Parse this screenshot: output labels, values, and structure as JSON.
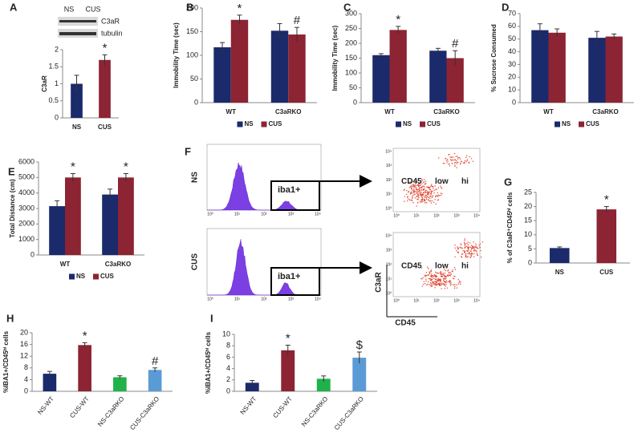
{
  "chart_data": [
    {
      "type": "bar",
      "panel": "A",
      "ylabel": "C3aR",
      "categories": [
        "NS",
        "CUS"
      ],
      "values": [
        1.0,
        1.7
      ],
      "errors": [
        0.25,
        0.15
      ],
      "annotations": [
        null,
        "*"
      ],
      "colors": [
        "#1b2a6b",
        "#8c2433"
      ],
      "ylim": [
        0,
        2
      ],
      "yticks": [
        0,
        0.5,
        1,
        1.5,
        2
      ],
      "blot_labels": [
        "NS",
        "CUS"
      ],
      "blot_rows": [
        "C3aR",
        "tubulin"
      ]
    },
    {
      "type": "grouped-bar",
      "panel": "B",
      "ylabel": "Immobility Time (sec)",
      "categories": [
        "WT",
        "C3aRKO"
      ],
      "series": [
        {
          "name": "NS",
          "color": "#1b2a6b",
          "values": [
            117,
            152
          ],
          "errors": [
            10,
            15
          ],
          "annotations": [
            null,
            null
          ]
        },
        {
          "name": "CUS",
          "color": "#8c2433",
          "values": [
            175,
            144
          ],
          "errors": [
            10,
            15
          ],
          "annotations": [
            "*",
            "#"
          ]
        }
      ],
      "ylim": [
        0,
        200
      ],
      "yticks": [
        0,
        50,
        100,
        150,
        200
      ],
      "legend": "bottom"
    },
    {
      "type": "grouped-bar",
      "panel": "C",
      "ylabel": "Immobility Time (sec)",
      "categories": [
        "WT",
        "C3aRKO"
      ],
      "series": [
        {
          "name": "NS",
          "color": "#1b2a6b",
          "values": [
            160,
            175
          ],
          "errors": [
            5,
            8
          ],
          "annotations": [
            null,
            null
          ]
        },
        {
          "name": "CUS",
          "color": "#8c2433",
          "values": [
            245,
            150
          ],
          "errors": [
            12,
            25
          ],
          "annotations": [
            "*",
            "#"
          ]
        }
      ],
      "ylim": [
        0,
        300
      ],
      "yticks": [
        0,
        50,
        100,
        150,
        200,
        250,
        300
      ],
      "legend": "bottom"
    },
    {
      "type": "grouped-bar",
      "panel": "D",
      "ylabel": "% Sucrose Consumed",
      "categories": [
        "WT",
        "C3aRKO"
      ],
      "series": [
        {
          "name": "NS",
          "color": "#1b2a6b",
          "values": [
            57,
            51
          ],
          "errors": [
            5,
            5
          ],
          "annotations": [
            null,
            null
          ]
        },
        {
          "name": "CUS",
          "color": "#8c2433",
          "values": [
            55,
            52
          ],
          "errors": [
            3,
            2
          ],
          "annotations": [
            null,
            null
          ]
        }
      ],
      "ylim": [
        0,
        70
      ],
      "yticks": [
        0,
        10,
        20,
        30,
        40,
        50,
        60,
        70
      ],
      "legend": "bottom"
    },
    {
      "type": "grouped-bar",
      "panel": "E",
      "ylabel": "Total Distance (cm)",
      "categories": [
        "WT",
        "C3aRKO"
      ],
      "series": [
        {
          "name": "NS",
          "color": "#1b2a6b",
          "values": [
            3150,
            3900
          ],
          "errors": [
            350,
            350
          ],
          "annotations": [
            null,
            null
          ]
        },
        {
          "name": "CUS",
          "color": "#8c2433",
          "values": [
            5000,
            5000
          ],
          "errors": [
            250,
            250
          ],
          "annotations": [
            "*",
            "*"
          ]
        }
      ],
      "ylim": [
        0,
        6000
      ],
      "yticks": [
        0,
        1000,
        2000,
        3000,
        4000,
        5000,
        6000
      ],
      "legend": "bottom"
    },
    {
      "type": "bar",
      "panel": "G",
      "ylabel": "% of C3aR⁺CD45ʰⁱ cells",
      "categories": [
        "NS",
        "CUS"
      ],
      "values": [
        5.3,
        19
      ],
      "errors": [
        0.4,
        1
      ],
      "annotations": [
        null,
        "*"
      ],
      "colors": [
        "#1b2a6b",
        "#8c2433"
      ],
      "ylim": [
        0,
        25
      ],
      "yticks": [
        0,
        5,
        10,
        15,
        20,
        25
      ]
    },
    {
      "type": "bar",
      "panel": "H",
      "ylabel": "%IBA1+/CD45ʰⁱ cells",
      "categories": [
        "NS-WT",
        "CUS-WT",
        "NS-C3aRKO",
        "CUS-C3aRKO"
      ],
      "values": [
        6,
        15.8,
        4.8,
        7.3
      ],
      "errors": [
        0.8,
        0.8,
        0.5,
        0.7
      ],
      "annotations": [
        null,
        "*",
        null,
        "#"
      ],
      "colors": [
        "#1b2a6b",
        "#8c2433",
        "#1fb24a",
        "#5b9bd5"
      ],
      "ylim": [
        0,
        20
      ],
      "yticks": [
        0,
        4,
        8,
        12,
        16,
        20
      ]
    },
    {
      "type": "bar",
      "panel": "I",
      "ylabel": "%IBA1+/CD45ʰⁱ cells",
      "categories": [
        "NS-WT",
        "CUS-WT",
        "NS-C3aRKO",
        "CUS-C3aRKO"
      ],
      "values": [
        1.5,
        7.2,
        2.2,
        5.9
      ],
      "errors": [
        0.4,
        0.9,
        0.5,
        1.0
      ],
      "annotations": [
        null,
        "*",
        null,
        "$"
      ],
      "colors": [
        "#1b2a6b",
        "#8c2433",
        "#1fb24a",
        "#5b9bd5"
      ],
      "ylim": [
        0,
        10
      ],
      "yticks": [
        0,
        2,
        4,
        6,
        8,
        10
      ]
    }
  ],
  "flow_panel": {
    "panel": "F",
    "rows": [
      {
        "label": "NS",
        "gate": "iba1+",
        "scatter_labels": [
          "CD45",
          "low",
          "hi"
        ]
      },
      {
        "label": "CUS",
        "gate": "iba1+",
        "scatter_labels": [
          "CD45",
          "low",
          "hi"
        ]
      }
    ],
    "scatter_y_axis": "C3aR",
    "scatter_x_axis": "CD45",
    "ticks": [
      "10⁰",
      "10¹",
      "10²",
      "10³",
      "10⁴"
    ]
  }
}
